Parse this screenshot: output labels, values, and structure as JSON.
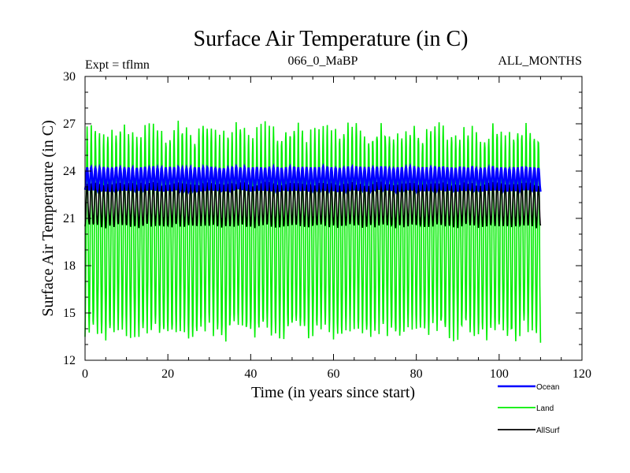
{
  "chart_data": {
    "type": "line",
    "title": "Surface Air Temperature (in C)",
    "subtitle_left": "Expt = tflmn",
    "subtitle_center": "066_0_MaBP",
    "subtitle_right": "ALL_MONTHS",
    "xlabel": "Time (in years since start)",
    "ylabel": "Surface Air Temperature (in C)",
    "xlim": [
      0,
      120
    ],
    "ylim": [
      12,
      30
    ],
    "xticks": [
      0,
      20,
      40,
      60,
      80,
      100,
      120
    ],
    "yticks": [
      12,
      15,
      18,
      21,
      24,
      27,
      30
    ],
    "x_range_data": [
      0,
      110
    ],
    "cycles_per_year": 1,
    "legend_position": "bottom-right, below plot",
    "series": [
      {
        "name": "Ocean",
        "color": "#0000ff",
        "mean": 23.4,
        "seasonal_min": 22.7,
        "seasonal_max": 24.3,
        "thick": true
      },
      {
        "name": "Land",
        "color": "#00ee00",
        "mean": 20.0,
        "seasonal_min": 13.3,
        "seasonal_max": 27.0,
        "thick": false
      },
      {
        "name": "AllSurf",
        "color": "#000000",
        "mean": 21.8,
        "seasonal_min": 20.4,
        "seasonal_max": 23.3,
        "thick": false
      }
    ]
  }
}
